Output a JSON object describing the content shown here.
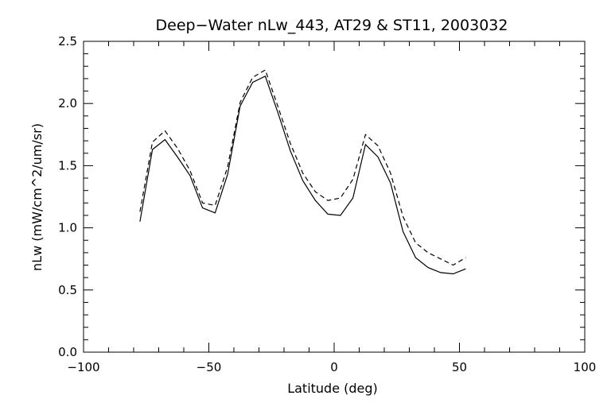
{
  "chart_data": {
    "type": "line",
    "title": "Deep−Water nLw_443, AT29 & ST11, 2003032",
    "xlabel": "Latitude (deg)",
    "ylabel": "nLw (mW/cm^2/um/sr)",
    "xlim": [
      -100,
      100
    ],
    "ylim": [
      0.0,
      2.5
    ],
    "xticks": [
      -100,
      -50,
      0,
      50,
      100
    ],
    "xtick_labels": [
      "−100",
      "−50",
      "0",
      "50",
      "100"
    ],
    "yticks": [
      0.0,
      0.5,
      1.0,
      1.5,
      2.0,
      2.5
    ],
    "ytick_labels": [
      "0.0",
      "0.5",
      "1.0",
      "1.5",
      "2.0",
      "2.5"
    ],
    "grid": false,
    "series": [
      {
        "style": "solid",
        "x": [
          -77.5,
          -72.5,
          -67.5,
          -62.5,
          -57.5,
          -52.5,
          -47.5,
          -42.5,
          -37.5,
          -32.5,
          -27.5,
          -22.5,
          -17.5,
          -12.5,
          -7.5,
          -2.5,
          2.5,
          7.5,
          12.5,
          17.5,
          22.5,
          27.5,
          32.5,
          37.5,
          42.5,
          47.5,
          52.5
        ],
        "y": [
          1.05,
          1.63,
          1.71,
          1.57,
          1.42,
          1.16,
          1.12,
          1.43,
          1.98,
          2.17,
          2.22,
          1.93,
          1.62,
          1.38,
          1.22,
          1.11,
          1.1,
          1.24,
          1.67,
          1.57,
          1.36,
          0.97,
          0.76,
          0.68,
          0.64,
          0.63,
          0.67
        ]
      },
      {
        "style": "dashed",
        "x": [
          -77.5,
          -72.5,
          -67.5,
          -62.5,
          -57.5,
          -52.5,
          -47.5,
          -42.5,
          -37.5,
          -32.5,
          -27.5,
          -22.5,
          -17.5,
          -12.5,
          -7.5,
          -2.5,
          2.5,
          7.5,
          12.5,
          17.5,
          22.5,
          27.5,
          32.5,
          37.5,
          42.5,
          47.5,
          52.5
        ],
        "y": [
          1.13,
          1.69,
          1.78,
          1.64,
          1.46,
          1.2,
          1.18,
          1.49,
          2.01,
          2.21,
          2.27,
          1.98,
          1.68,
          1.44,
          1.29,
          1.22,
          1.24,
          1.39,
          1.75,
          1.66,
          1.44,
          1.09,
          0.88,
          0.8,
          0.75,
          0.7,
          0.76
        ]
      }
    ]
  }
}
